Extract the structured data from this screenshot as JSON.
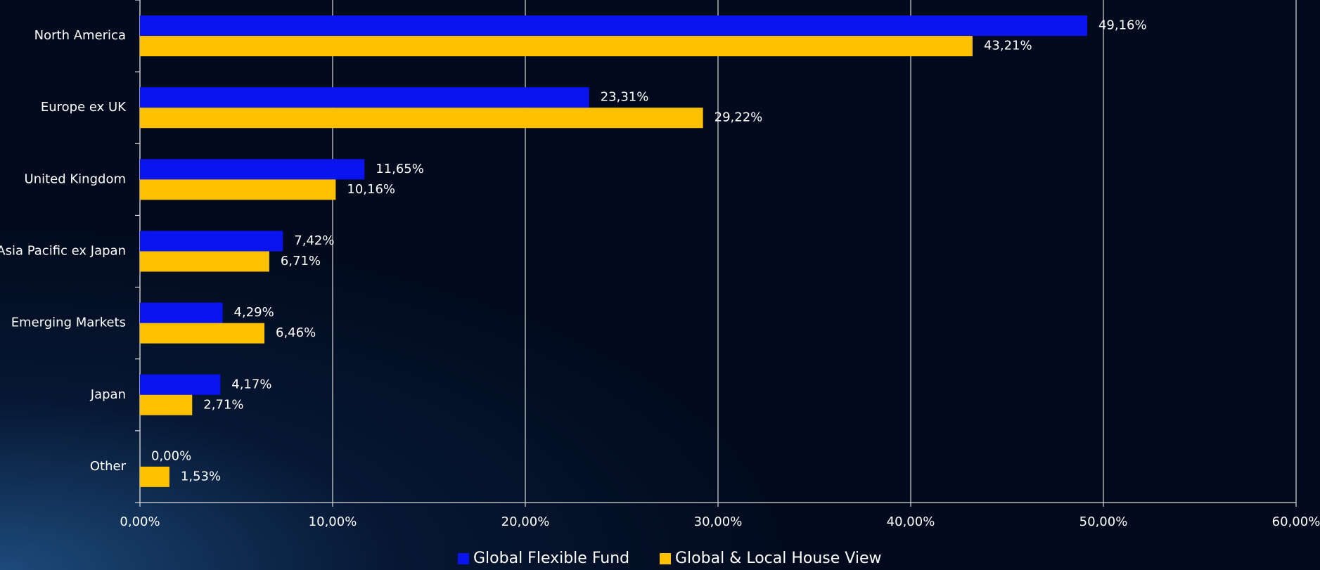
{
  "chart_data": {
    "type": "barh",
    "categories": [
      "North America",
      "Europe ex UK",
      "United Kingdom",
      "Asia Pacific ex Japan",
      "Emerging Markets",
      "Japan",
      "Other"
    ],
    "series": [
      {
        "name": "Global Flexible Fund",
        "color": "#0a14f0",
        "values": [
          49.16,
          23.31,
          11.65,
          7.42,
          4.29,
          4.17,
          0.0
        ],
        "value_labels": [
          "49,16%",
          "23,31%",
          "11,65%",
          "7,42%",
          "4,29%",
          "4,17%",
          "0,00%"
        ]
      },
      {
        "name": "Global & Local House View",
        "color": "#ffc000",
        "values": [
          43.21,
          29.22,
          10.16,
          6.71,
          6.46,
          2.71,
          1.53
        ],
        "value_labels": [
          "43,21%",
          "29,22%",
          "10,16%",
          "6,71%",
          "6,46%",
          "2,71%",
          "1,53%"
        ]
      }
    ],
    "xlim": [
      0,
      60
    ],
    "xticks": [
      {
        "value": 0,
        "label": "0,00%"
      },
      {
        "value": 10,
        "label": "10,00%"
      },
      {
        "value": 20,
        "label": "20,00%"
      },
      {
        "value": 30,
        "label": "30,00%"
      },
      {
        "value": 40,
        "label": "40,00%"
      },
      {
        "value": 50,
        "label": "50,00%"
      },
      {
        "value": 60,
        "label": "60,00%"
      }
    ],
    "grid": true,
    "legend": "bottom"
  }
}
